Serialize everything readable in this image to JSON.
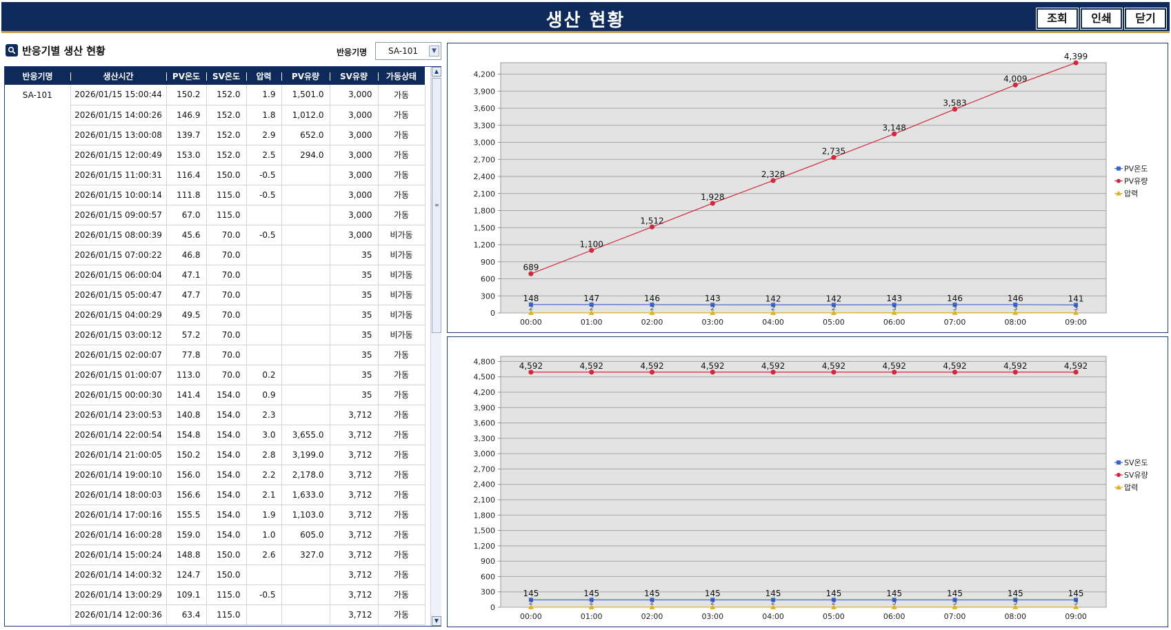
{
  "header": {
    "title": "생산 현황",
    "buttons": {
      "search": "조회",
      "print": "인쇄",
      "close": "닫기"
    }
  },
  "section": {
    "title": "반응기별 생산 현황",
    "filter_label": "반응기명",
    "filter_value": "SA-101"
  },
  "table": {
    "columns": [
      "반응기명",
      "생산시간",
      "PV온도",
      "SV온도",
      "압력",
      "PV유량",
      "SV유량",
      "가동상태"
    ],
    "reactor": "SA-101",
    "rows": [
      [
        "2026/01/15 15:00:44",
        "150.2",
        "152.0",
        "1.9",
        "1,501.0",
        "3,000",
        "가동"
      ],
      [
        "2026/01/15 14:00:26",
        "146.9",
        "152.0",
        "1.8",
        "1,012.0",
        "3,000",
        "가동"
      ],
      [
        "2026/01/15 13:00:08",
        "139.7",
        "152.0",
        "2.9",
        "652.0",
        "3,000",
        "가동"
      ],
      [
        "2026/01/15 12:00:49",
        "153.0",
        "152.0",
        "2.5",
        "294.0",
        "3,000",
        "가동"
      ],
      [
        "2026/01/15 11:00:31",
        "116.4",
        "150.0",
        "-0.5",
        "",
        "3,000",
        "가동"
      ],
      [
        "2026/01/15 10:00:14",
        "111.8",
        "115.0",
        "-0.5",
        "",
        "3,000",
        "가동"
      ],
      [
        "2026/01/15 09:00:57",
        "67.0",
        "115.0",
        "",
        "",
        "3,000",
        "가동"
      ],
      [
        "2026/01/15 08:00:39",
        "45.6",
        "70.0",
        "-0.5",
        "",
        "3,000",
        "비가동"
      ],
      [
        "2026/01/15 07:00:22",
        "46.8",
        "70.0",
        "",
        "",
        "35",
        "비가동"
      ],
      [
        "2026/01/15 06:00:04",
        "47.1",
        "70.0",
        "",
        "",
        "35",
        "비가동"
      ],
      [
        "2026/01/15 05:00:47",
        "47.7",
        "70.0",
        "",
        "",
        "35",
        "비가동"
      ],
      [
        "2026/01/15 04:00:29",
        "49.5",
        "70.0",
        "",
        "",
        "35",
        "비가동"
      ],
      [
        "2026/01/15 03:00:12",
        "57.2",
        "70.0",
        "",
        "",
        "35",
        "비가동"
      ],
      [
        "2026/01/15 02:00:07",
        "77.8",
        "70.0",
        "",
        "",
        "35",
        "가동"
      ],
      [
        "2026/01/15 01:00:07",
        "113.0",
        "70.0",
        "0.2",
        "",
        "35",
        "가동"
      ],
      [
        "2026/01/15 00:00:30",
        "141.4",
        "154.0",
        "0.9",
        "",
        "35",
        "가동"
      ],
      [
        "2026/01/14 23:00:53",
        "140.8",
        "154.0",
        "2.3",
        "",
        "3,712",
        "가동"
      ],
      [
        "2026/01/14 22:00:54",
        "154.8",
        "154.0",
        "3.0",
        "3,655.0",
        "3,712",
        "가동"
      ],
      [
        "2026/01/14 21:00:05",
        "150.2",
        "154.0",
        "2.8",
        "3,199.0",
        "3,712",
        "가동"
      ],
      [
        "2026/01/14 19:00:10",
        "156.0",
        "154.0",
        "2.2",
        "2,178.0",
        "3,712",
        "가동"
      ],
      [
        "2026/01/14 18:00:03",
        "156.6",
        "154.0",
        "2.1",
        "1,633.0",
        "3,712",
        "가동"
      ],
      [
        "2026/01/14 17:00:16",
        "155.5",
        "154.0",
        "1.9",
        "1,103.0",
        "3,712",
        "가동"
      ],
      [
        "2026/01/14 16:00:28",
        "159.0",
        "154.0",
        "1.0",
        "605.0",
        "3,712",
        "가동"
      ],
      [
        "2026/01/14 15:00:24",
        "148.8",
        "150.0",
        "2.6",
        "327.0",
        "3,712",
        "가동"
      ],
      [
        "2026/01/14 14:00:32",
        "124.7",
        "150.0",
        "",
        "",
        "3,712",
        "가동"
      ],
      [
        "2026/01/14 13:00:29",
        "109.1",
        "115.0",
        "-0.5",
        "",
        "3,712",
        "가동"
      ],
      [
        "2026/01/14 12:00:36",
        "63.4",
        "115.0",
        "",
        "",
        "3,712",
        "가동"
      ]
    ]
  },
  "chart_data": [
    {
      "type": "line",
      "categories": [
        "00:00",
        "01:00",
        "02:00",
        "03:00",
        "04:00",
        "05:00",
        "06:00",
        "07:00",
        "08:00",
        "09:00"
      ],
      "ylim": [
        0,
        4400
      ],
      "yticks": [
        0,
        300,
        600,
        900,
        1200,
        1500,
        1800,
        2100,
        2400,
        2700,
        3000,
        3300,
        3600,
        3900,
        4200
      ],
      "grid": true,
      "legend_position": "right",
      "series": [
        {
          "name": "PV온도",
          "color": "#3a64c8",
          "marker": "square",
          "values": [
            148,
            147,
            146,
            143,
            142,
            142,
            143,
            146,
            146,
            141
          ],
          "labels": [
            "148",
            "147",
            "146",
            "143",
            "142",
            "142",
            "143",
            "146",
            "146",
            "141"
          ]
        },
        {
          "name": "PV유량",
          "color": "#d0283c",
          "marker": "circle",
          "values": [
            689,
            1100,
            1512,
            1928,
            2328,
            2735,
            3148,
            3583,
            4009,
            4399
          ],
          "labels": [
            "689",
            "1,100",
            "1,512",
            "1,928",
            "2,328",
            "2,735",
            "3,148",
            "3,583",
            "4,009",
            "4,399"
          ]
        },
        {
          "name": "압력",
          "color": "#e0b020",
          "marker": "triangle",
          "values": [
            2,
            2,
            2,
            2,
            2,
            2,
            3,
            3,
            3,
            3
          ],
          "labels": [
            "2",
            "2",
            "2",
            "2",
            "2",
            "2",
            "3",
            "3",
            "3",
            "3"
          ]
        }
      ]
    },
    {
      "type": "line",
      "categories": [
        "00:00",
        "01:00",
        "02:00",
        "03:00",
        "04:00",
        "05:00",
        "06:00",
        "07:00",
        "08:00",
        "09:00"
      ],
      "ylim": [
        0,
        4900
      ],
      "yticks": [
        0,
        300,
        600,
        900,
        1200,
        1500,
        1800,
        2100,
        2400,
        2700,
        3000,
        3300,
        3600,
        3900,
        4200,
        4500,
        4800
      ],
      "grid": true,
      "legend_position": "right",
      "series": [
        {
          "name": "SV온도",
          "color": "#3a64c8",
          "marker": "square",
          "values": [
            145,
            145,
            145,
            145,
            145,
            145,
            145,
            145,
            145,
            145
          ],
          "labels": [
            "145",
            "145",
            "145",
            "145",
            "145",
            "145",
            "145",
            "145",
            "145",
            "145"
          ]
        },
        {
          "name": "SV유량",
          "color": "#d0283c",
          "marker": "circle",
          "values": [
            4592,
            4592,
            4592,
            4592,
            4592,
            4592,
            4592,
            4592,
            4592,
            4592
          ],
          "labels": [
            "4,592",
            "4,592",
            "4,592",
            "4,592",
            "4,592",
            "4,592",
            "4,592",
            "4,592",
            "4,592",
            "4,592"
          ]
        },
        {
          "name": "압력",
          "color": "#e0b020",
          "marker": "triangle",
          "values": [
            2,
            2,
            2,
            2,
            2,
            2,
            3,
            3,
            3,
            3
          ],
          "labels": [
            "2",
            "2",
            "2",
            "2",
            "2",
            "2",
            "3",
            "3",
            "3",
            "3"
          ]
        }
      ]
    }
  ]
}
